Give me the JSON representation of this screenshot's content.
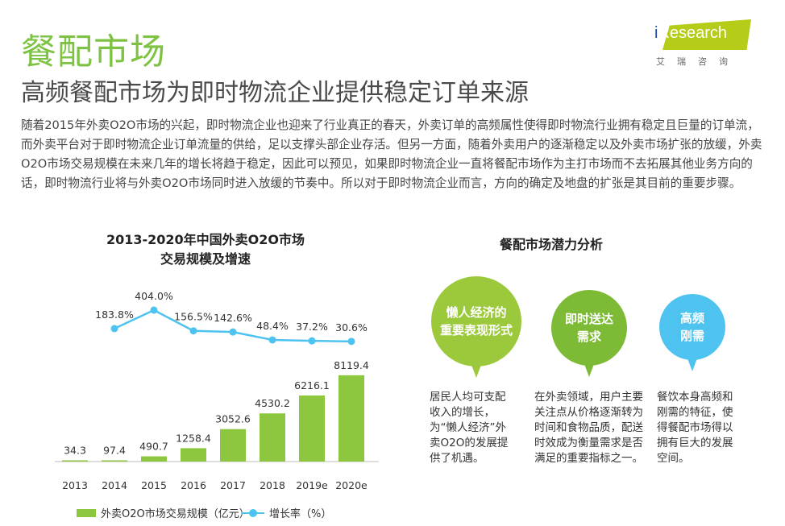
{
  "header": {
    "title": "餐配市场",
    "subtitle": "高频餐配市场为即时物流企业提供稳定订单来源"
  },
  "logo": {
    "text": "iResearch",
    "cn": "艾瑞咨询"
  },
  "body_text": "随着2015年外卖O2O市场的兴起，即时物流企业也迎来了行业真正的春天，外卖订单的高频属性使得即时物流行业拥有稳定且巨量的订单流，而外卖平台对于即时物流企业订单流量的供给，足以支撑头部企业存活。但另一方面，随着外卖用户的逐渐稳定以及外卖市场扩张的放缓，外卖O2O市场交易规模在未来几年的增长将趋于稳定，因此可以预见，如果即时物流企业一直将餐配市场作为主打市场而不去拓展其他业务方向的话，即时物流行业将与外卖O2O市场同时进入放缓的节奏中。所以对于即时物流企业而言，方向的确定及地盘的扩张是其目前的重要步骤。",
  "chart_data": {
    "type": "bar",
    "title_line1": "2013-2020年中国外卖O2O市场",
    "title_line2": "交易规模及增速",
    "categories": [
      "2013",
      "2014",
      "2015",
      "2016",
      "2017",
      "2018",
      "2019e",
      "2020e"
    ],
    "series": [
      {
        "name": "外卖O2O市场交易规模（亿元）",
        "type": "bar",
        "values": [
          34.3,
          97.4,
          490.7,
          1258.4,
          3052.6,
          4530.2,
          6216.1,
          8119.4
        ],
        "labels": [
          "34.3",
          "97.4",
          "490.7",
          "1258.4",
          "3052.6",
          "4530.2",
          "6216.1",
          "8119.4"
        ],
        "color": "#8dc63f"
      },
      {
        "name": "增长率（%）",
        "type": "line",
        "values": [
          null,
          183.8,
          404.0,
          156.5,
          142.6,
          48.4,
          37.2,
          30.6
        ],
        "labels": [
          "",
          "183.8%",
          "404.0%",
          "156.5%",
          "142.6%",
          "48.4%",
          "37.2%",
          "30.6%"
        ],
        "color": "#4ec3f0"
      }
    ],
    "legend_position": "bottom",
    "grid": false
  },
  "potential": {
    "title": "餐配市场潜力分析",
    "items": [
      {
        "bubble_line1": "懒人经济的",
        "bubble_line2": "重要表现形式",
        "color": "#9cc93b",
        "desc": "居民人均可支配收入的增长，为“懒人经济”外卖O2O的发展提供了机遇。"
      },
      {
        "bubble_line1": "即时送达",
        "bubble_line2": "需求",
        "color": "#7dbb37",
        "desc": "在外卖领域，用户主要关注点从价格逐渐转为时间和食物品质，配送时效成为衡量需求是否满足的重要指标之一。"
      },
      {
        "bubble_line1": "高频",
        "bubble_line2": "刚需",
        "color": "#4fc3f0",
        "desc": "餐饮本身高频和刚需的特征，使得餐配市场得以拥有巨大的发展空间。"
      }
    ]
  }
}
